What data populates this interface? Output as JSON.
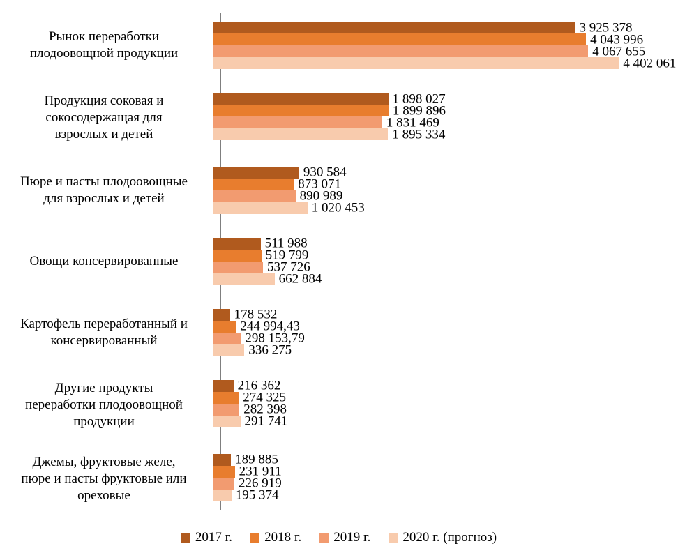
{
  "chart_data": {
    "type": "bar",
    "orientation": "horizontal",
    "title": "",
    "xlabel": "",
    "ylabel": "",
    "xmax": 4402061,
    "grid": false,
    "legend_position": "bottom",
    "axis_color": "#7f7f7f",
    "categories": [
      "Рынок переработки\nплодоовощной продукции",
      "Продукция соковая и\nсокосодержащая для\nвзрослых и детей",
      "Пюре и пасты плодоовощные\nдля взрослых и детей",
      "Овощи консервированные",
      "Картофель переработанный и\nконсервированный",
      "Другие продукты\nпереработки плодоовощной\nпродукции",
      "Джемы, фруктовые желе,\nпюре и пасты фруктовые или\nореховые"
    ],
    "series": [
      {
        "name": "2017 г.",
        "color": "#b05a1e",
        "values": [
          3925378,
          1898027,
          930584,
          511988,
          178532,
          216362,
          189885
        ],
        "labels": [
          "3 925 378",
          "1 898 027",
          "930 584",
          "511 988",
          "178 532",
          "216 362",
          "189 885"
        ]
      },
      {
        "name": "2018 г.",
        "color": "#e87d2e",
        "values": [
          4043996,
          1899896,
          873071,
          519799,
          244994.43,
          274325,
          231911
        ],
        "labels": [
          "4 043 996",
          "1 899 896",
          "873 071",
          "519 799",
          "244 994,43",
          "274 325",
          "231 911"
        ]
      },
      {
        "name": "2019 г.",
        "color": "#f29b70",
        "values": [
          4067655,
          1831469,
          890989,
          537726,
          298153.79,
          282398,
          226919
        ],
        "labels": [
          "4 067 655",
          "1 831 469",
          "890 989",
          "537 726",
          "298 153,79",
          "282 398",
          "226 919"
        ]
      },
      {
        "name": "2020 г. (прогноз)",
        "color": "#f8cbad",
        "values": [
          4402061,
          1895334,
          1020453,
          662884,
          336275,
          291741,
          195374
        ],
        "labels": [
          "4 402 061",
          "1 895 334",
          "1 020 453",
          "662 884",
          "336 275",
          "291 741",
          "195 374"
        ]
      }
    ]
  }
}
